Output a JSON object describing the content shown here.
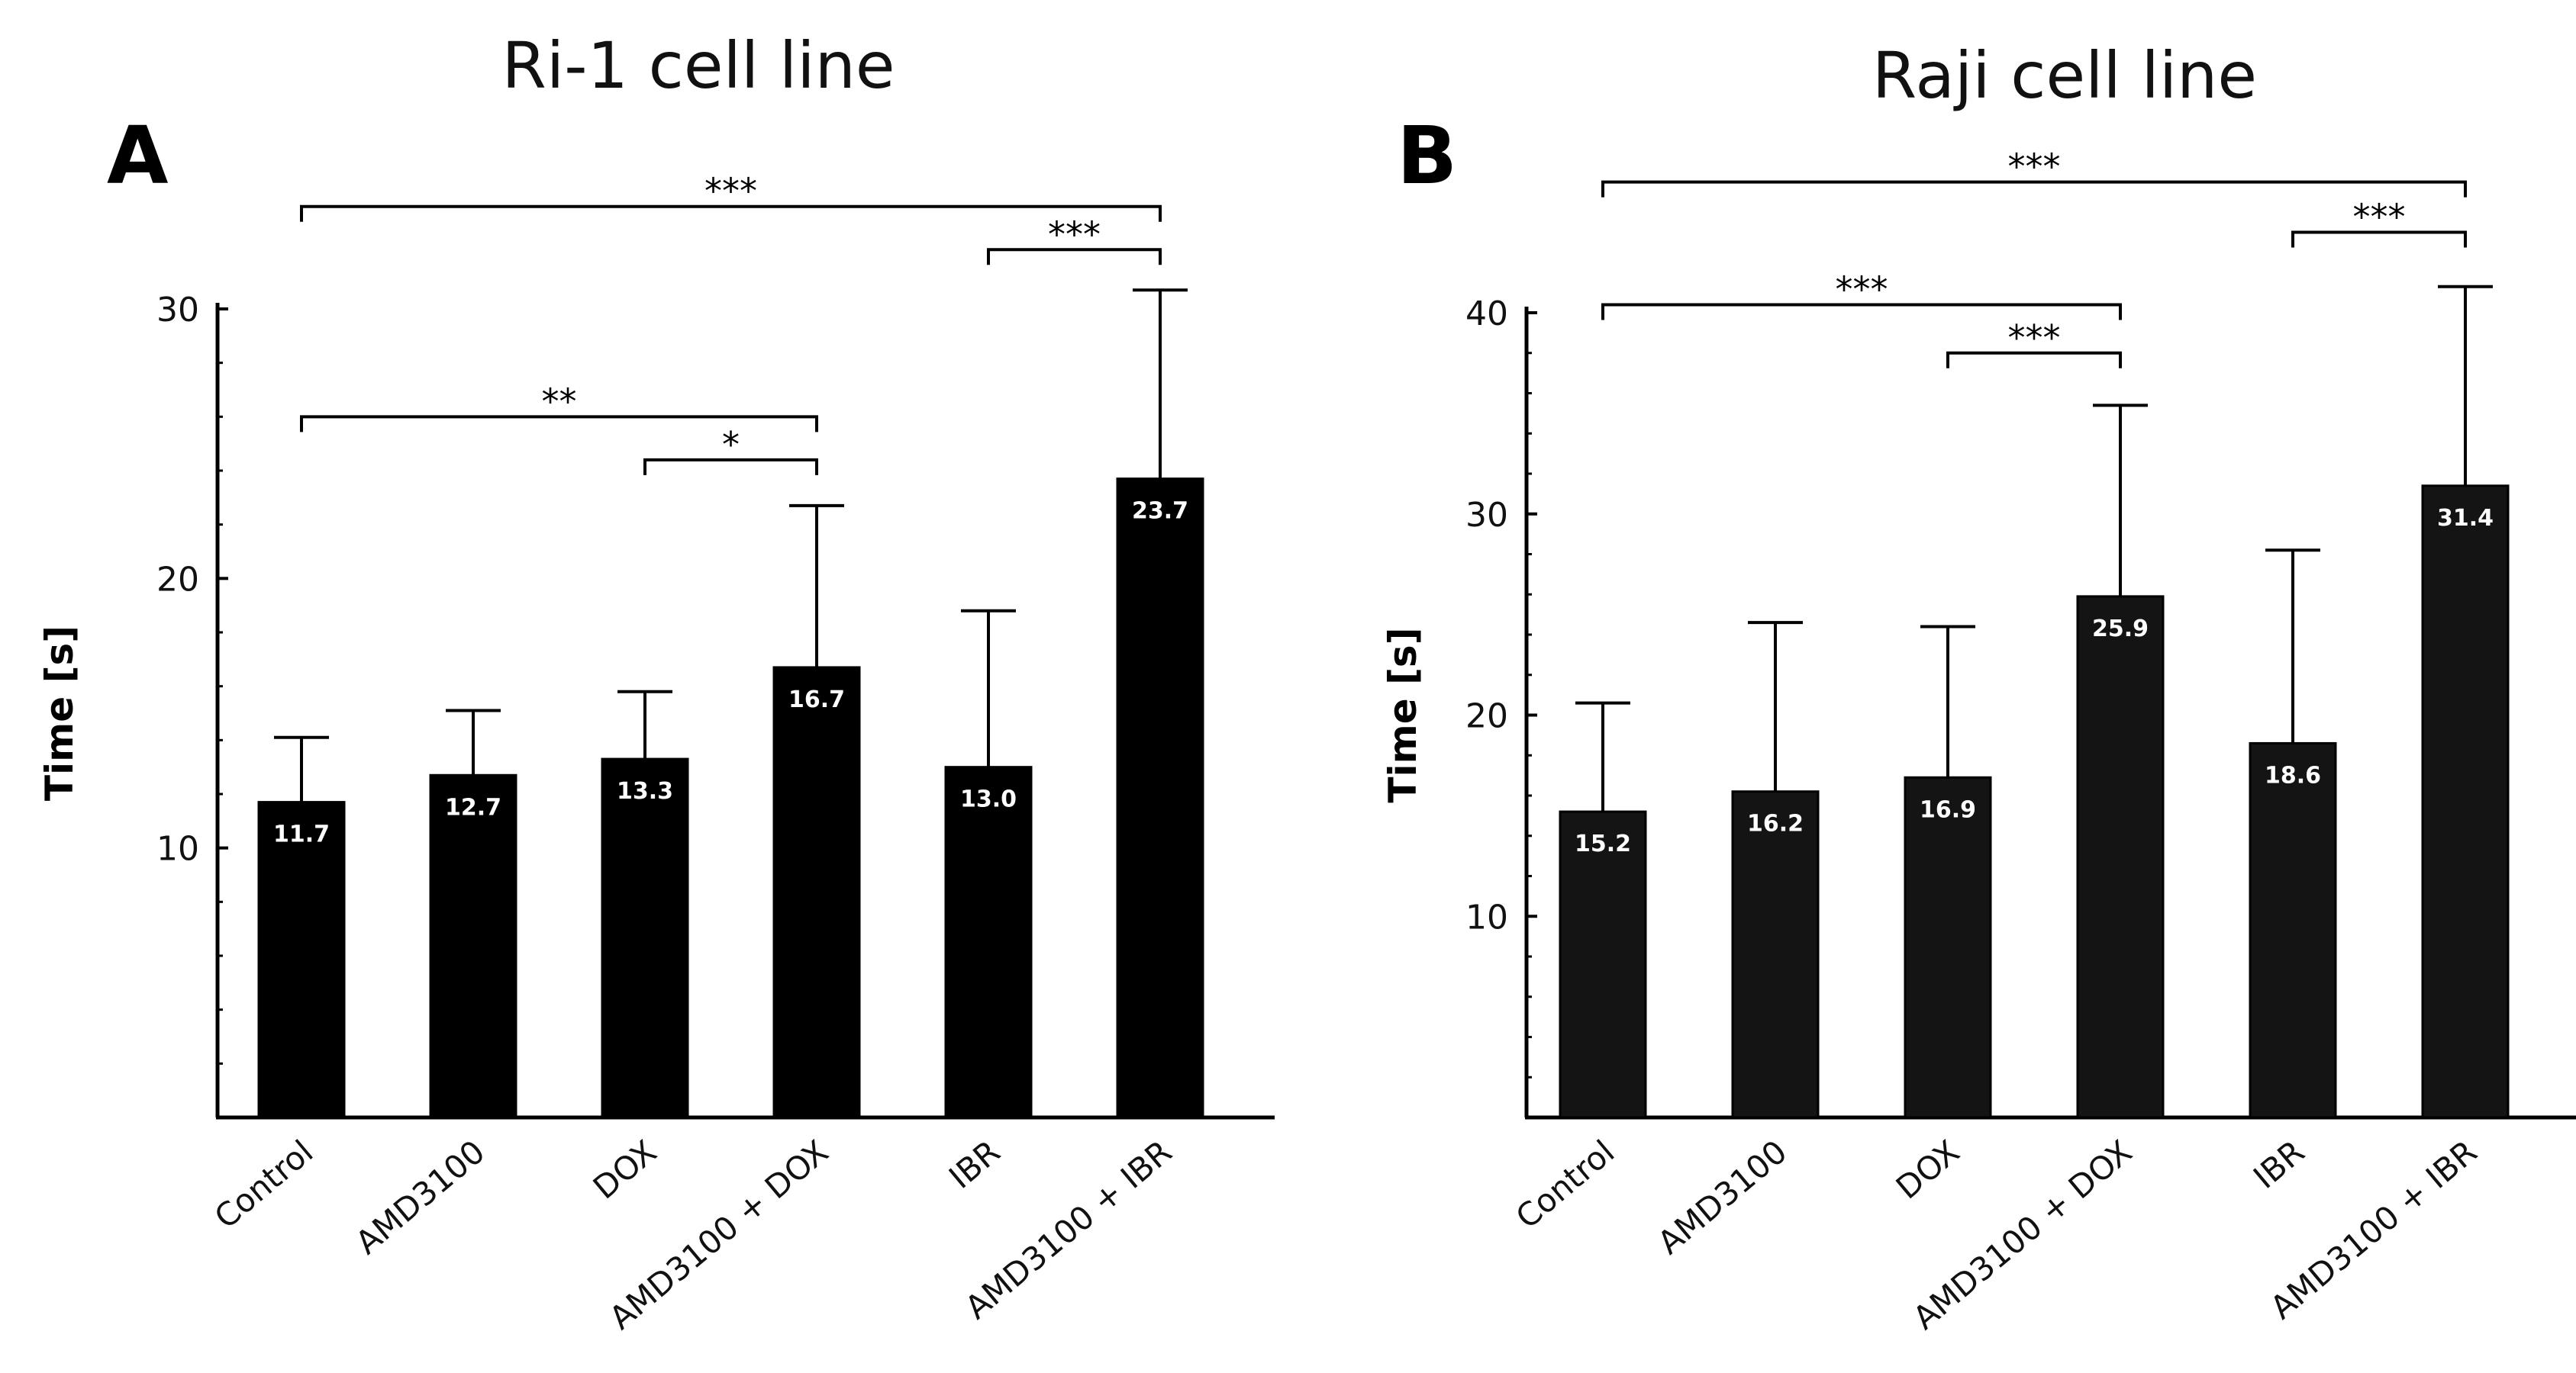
{
  "chart_data": [
    {
      "type": "bar",
      "panel": "A",
      "title": "Ri-1 cell line",
      "xlabel": "",
      "ylabel": "Time [s]",
      "ylim": [
        0,
        30
      ],
      "yticks": [
        "10",
        "20",
        "30"
      ],
      "grid": false,
      "categories": [
        "Control",
        "AMD3100",
        "DOX",
        "AMD3100 + DOX",
        "IBR",
        "AMD3100 + IBR"
      ],
      "values": [
        11.7,
        12.7,
        13.3,
        16.7,
        13.0,
        23.7
      ],
      "value_labels": [
        "11.7",
        "12.7",
        "13.3",
        "16.7",
        "13.0",
        "23.7"
      ],
      "error_upper": [
        14.1,
        15.1,
        15.8,
        22.7,
        18.8,
        30.7
      ],
      "bar_color": "#000000",
      "significance": [
        {
          "from": 0,
          "to": 5,
          "label": "***",
          "y": 33.8
        },
        {
          "from": 4,
          "to": 5,
          "label": "***",
          "y": 32.2
        },
        {
          "from": 0,
          "to": 3,
          "label": "**",
          "y": 26.0
        },
        {
          "from": 2,
          "to": 3,
          "label": "*",
          "y": 24.4
        }
      ]
    },
    {
      "type": "bar",
      "panel": "B",
      "title": "Raji cell line",
      "xlabel": "",
      "ylabel": "Time [s]",
      "ylim": [
        0,
        40
      ],
      "yticks": [
        "10",
        "20",
        "30",
        "40"
      ],
      "grid": false,
      "categories": [
        "Control",
        "AMD3100",
        "DOX",
        "AMD3100 + DOX",
        "IBR",
        "AMD3100 + IBR"
      ],
      "values": [
        15.2,
        16.2,
        16.9,
        25.9,
        18.6,
        31.4
      ],
      "value_labels": [
        "15.2",
        "16.2",
        "16.9",
        "25.9",
        "18.6",
        "31.4"
      ],
      "error_upper": [
        20.6,
        24.6,
        24.4,
        35.4,
        28.2,
        41.3
      ],
      "bar_color": "#141414",
      "significance": [
        {
          "from": 0,
          "to": 5,
          "label": "***",
          "y": 46.5
        },
        {
          "from": 4,
          "to": 5,
          "label": "***",
          "y": 44.0
        },
        {
          "from": 0,
          "to": 3,
          "label": "***",
          "y": 40.4
        },
        {
          "from": 2,
          "to": 3,
          "label": "***",
          "y": 38.0
        }
      ]
    }
  ]
}
